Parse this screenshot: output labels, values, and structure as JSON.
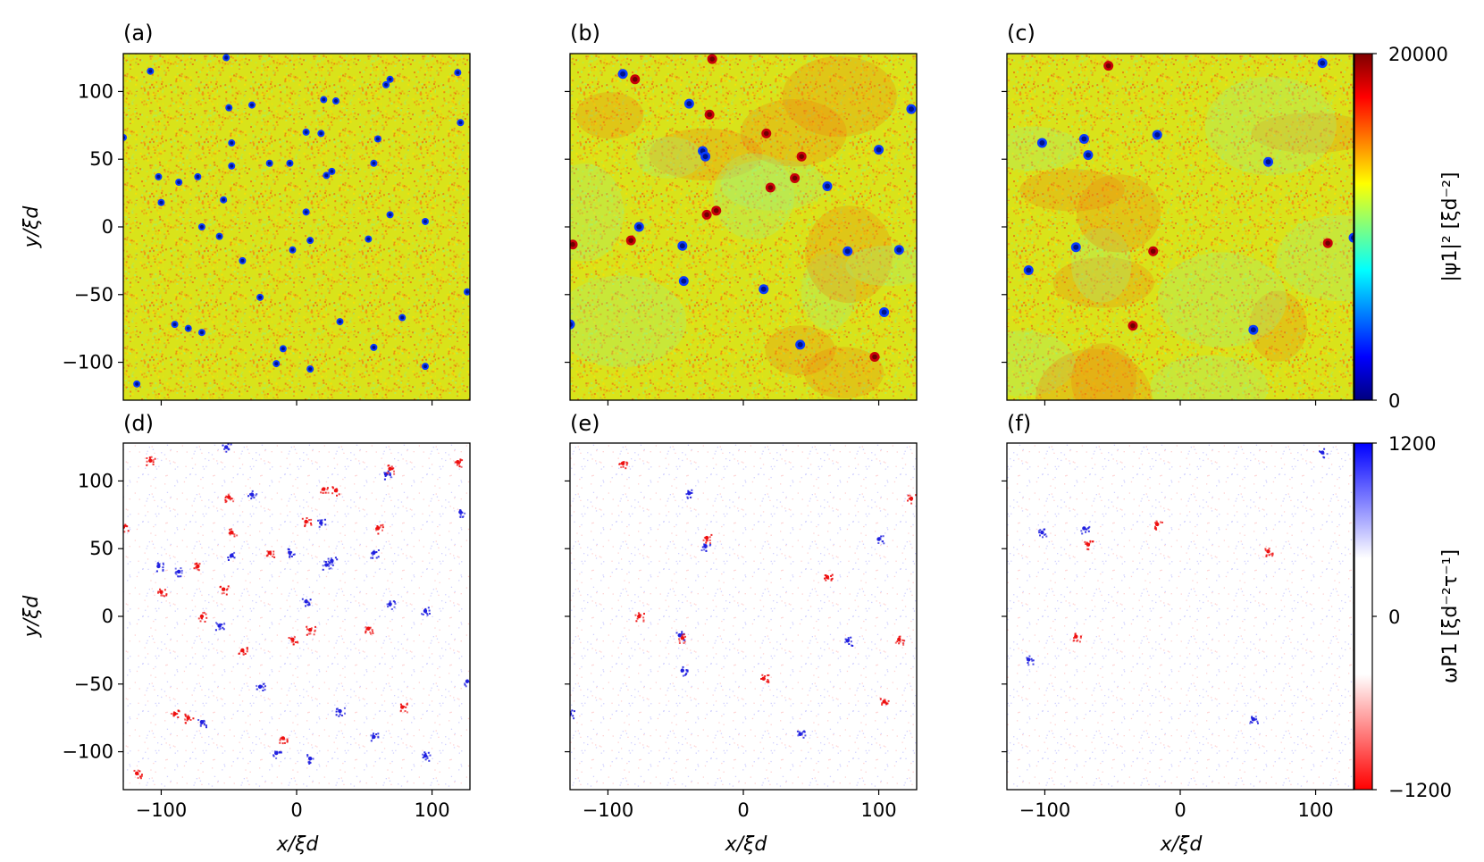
{
  "chart_data": [
    {
      "type": "heatmap",
      "panel": "(a)",
      "field": "density",
      "xlim": [
        -128,
        128
      ],
      "ylim": [
        -128,
        128
      ],
      "xticks": [
        -100,
        0,
        100
      ],
      "yticks": [
        -100,
        -50,
        0,
        50,
        100
      ],
      "ylabel": "y/ξd",
      "vortices": [
        [
          -108,
          115
        ],
        [
          -52,
          125
        ],
        [
          -128,
          66
        ],
        [
          -50,
          88
        ],
        [
          -33,
          90
        ],
        [
          -48,
          62
        ],
        [
          -5,
          47
        ],
        [
          7,
          70
        ],
        [
          18,
          69
        ],
        [
          -20,
          47
        ],
        [
          20,
          94
        ],
        [
          29,
          93
        ],
        [
          60,
          65
        ],
        [
          69,
          109
        ],
        [
          66,
          105
        ],
        [
          119,
          114
        ],
        [
          121,
          77
        ],
        [
          -102,
          37
        ],
        [
          -87,
          33
        ],
        [
          -73,
          37
        ],
        [
          -54,
          20
        ],
        [
          -100,
          18
        ],
        [
          -48,
          45
        ],
        [
          -70,
          0
        ],
        [
          -57,
          -7
        ],
        [
          -3,
          -17
        ],
        [
          10,
          -10
        ],
        [
          22,
          38
        ],
        [
          26,
          41
        ],
        [
          57,
          47
        ],
        [
          69,
          9
        ],
        [
          95,
          4
        ],
        [
          53,
          -9
        ],
        [
          -40,
          -25
        ],
        [
          7,
          11
        ],
        [
          -27,
          -52
        ],
        [
          -90,
          -72
        ],
        [
          -80,
          -75
        ],
        [
          -70,
          -78
        ],
        [
          -10,
          -90
        ],
        [
          -15,
          -101
        ],
        [
          10,
          -105
        ],
        [
          57,
          -89
        ],
        [
          78,
          -67
        ],
        [
          32,
          -70
        ],
        [
          95,
          -103
        ],
        [
          -118,
          -116
        ],
        [
          126,
          -48
        ]
      ]
    },
    {
      "type": "heatmap",
      "panel": "(b)",
      "field": "density",
      "xlim": [
        -128,
        128
      ],
      "ylim": [
        -128,
        128
      ],
      "xticks": [
        -100,
        0,
        100
      ],
      "yticks": [
        -100,
        -50,
        0,
        50,
        100
      ],
      "vortices": [
        [
          -89,
          113
        ],
        [
          -40,
          91
        ],
        [
          -30,
          56
        ],
        [
          -28,
          52
        ],
        [
          -77,
          0
        ],
        [
          -45,
          -14
        ],
        [
          -44,
          -40
        ],
        [
          15,
          -46
        ],
        [
          42,
          -87
        ],
        [
          -128,
          -72
        ],
        [
          100,
          57
        ],
        [
          124,
          87
        ],
        [
          77,
          -18
        ],
        [
          115,
          -17
        ],
        [
          104,
          -63
        ],
        [
          62,
          30
        ]
      ],
      "antivortices": [
        [
          -80,
          109
        ],
        [
          -23,
          124
        ],
        [
          -25,
          83
        ],
        [
          17,
          69
        ],
        [
          43,
          52
        ],
        [
          38,
          36
        ],
        [
          20,
          29
        ],
        [
          -27,
          9
        ],
        [
          -20,
          12
        ],
        [
          -83,
          -10
        ],
        [
          -126,
          -13
        ],
        [
          97,
          -96
        ]
      ]
    },
    {
      "type": "heatmap",
      "panel": "(c)",
      "field": "density",
      "xlim": [
        -128,
        128
      ],
      "ylim": [
        -128,
        128
      ],
      "xticks": [
        -100,
        0,
        100
      ],
      "yticks": [
        -100,
        -50,
        0,
        50,
        100
      ],
      "vortices": [
        [
          -71,
          65
        ],
        [
          -68,
          53
        ],
        [
          -102,
          62
        ],
        [
          -17,
          68
        ],
        [
          65,
          48
        ],
        [
          105,
          121
        ],
        [
          -77,
          -15
        ],
        [
          -112,
          -32
        ],
        [
          54,
          -76
        ],
        [
          128,
          -8
        ]
      ],
      "antivortices": [
        [
          -53,
          119
        ],
        [
          -20,
          -18
        ],
        [
          -35,
          -73
        ],
        [
          109,
          -12
        ]
      ]
    },
    {
      "type": "heatmap",
      "panel": "(d)",
      "field": "vorticity",
      "xlim": [
        -128,
        128
      ],
      "ylim": [
        -128,
        128
      ],
      "xticks": [
        -100,
        0,
        100
      ],
      "yticks": [
        -100,
        -50,
        0,
        50,
        100
      ],
      "xlabel": "x/ξd",
      "ylabel": "y/ξd",
      "positive": [
        [
          -52,
          125
        ],
        [
          -33,
          90
        ],
        [
          -5,
          47
        ],
        [
          18,
          69
        ],
        [
          66,
          105
        ],
        [
          121,
          77
        ],
        [
          -102,
          37
        ],
        [
          -87,
          33
        ],
        [
          -48,
          45
        ],
        [
          -57,
          -7
        ],
        [
          22,
          38
        ],
        [
          26,
          41
        ],
        [
          57,
          47
        ],
        [
          69,
          9
        ],
        [
          95,
          4
        ],
        [
          7,
          11
        ],
        [
          -27,
          -52
        ],
        [
          -70,
          -78
        ],
        [
          -15,
          -101
        ],
        [
          10,
          -105
        ],
        [
          57,
          -89
        ],
        [
          32,
          -70
        ],
        [
          95,
          -103
        ],
        [
          126,
          -48
        ]
      ],
      "negative": [
        [
          -108,
          115
        ],
        [
          -128,
          66
        ],
        [
          -50,
          88
        ],
        [
          -48,
          62
        ],
        [
          7,
          70
        ],
        [
          -20,
          47
        ],
        [
          20,
          94
        ],
        [
          29,
          93
        ],
        [
          60,
          65
        ],
        [
          69,
          109
        ],
        [
          119,
          114
        ],
        [
          -73,
          37
        ],
        [
          -54,
          20
        ],
        [
          -100,
          18
        ],
        [
          -70,
          0
        ],
        [
          -3,
          -17
        ],
        [
          10,
          -10
        ],
        [
          53,
          -9
        ],
        [
          -40,
          -25
        ],
        [
          -90,
          -72
        ],
        [
          -80,
          -75
        ],
        [
          -10,
          -90
        ],
        [
          78,
          -67
        ],
        [
          -118,
          -116
        ]
      ]
    },
    {
      "type": "heatmap",
      "panel": "(e)",
      "field": "vorticity",
      "xlim": [
        -128,
        128
      ],
      "ylim": [
        -128,
        128
      ],
      "xticks": [
        -100,
        0,
        100
      ],
      "yticks": [
        -100,
        -50,
        0,
        50,
        100
      ],
      "xlabel": "x/ξd",
      "positive": [
        [
          -40,
          91
        ],
        [
          -28,
          52
        ],
        [
          -45,
          -40
        ],
        [
          42,
          -87
        ],
        [
          -128,
          -72
        ],
        [
          100,
          57
        ],
        [
          77,
          -18
        ],
        [
          -47,
          -14
        ]
      ],
      "negative": [
        [
          -89,
          113
        ],
        [
          -27,
          58
        ],
        [
          -77,
          0
        ],
        [
          15,
          -46
        ],
        [
          62,
          29
        ],
        [
          115,
          -17
        ],
        [
          104,
          -63
        ],
        [
          124,
          87
        ],
        [
          -45,
          -16
        ]
      ]
    },
    {
      "type": "heatmap",
      "panel": "(f)",
      "field": "vorticity",
      "xlim": [
        -128,
        128
      ],
      "ylim": [
        -128,
        128
      ],
      "xticks": [
        -100,
        0,
        100
      ],
      "yticks": [
        -100,
        -50,
        0,
        50,
        100
      ],
      "xlabel": "x/ξd",
      "positive": [
        [
          -71,
          65
        ],
        [
          -102,
          62
        ],
        [
          105,
          121
        ],
        [
          -112,
          -32
        ],
        [
          54,
          -76
        ]
      ],
      "negative": [
        [
          -68,
          53
        ],
        [
          -17,
          68
        ],
        [
          65,
          48
        ],
        [
          -77,
          -15
        ]
      ]
    }
  ],
  "colorbars": [
    {
      "label": "|ψ1|² [ξd⁻²]",
      "min_label": "0",
      "max_label": "20000",
      "colormap": [
        "#00007f",
        "#0000ff",
        "#007fff",
        "#00ffff",
        "#7fff7f",
        "#ffff00",
        "#ff7f00",
        "#ff0000",
        "#7f0000"
      ]
    },
    {
      "label": "ωP1 [ξd⁻²τ⁻¹]",
      "min_label": "−1200",
      "mid_label": "0",
      "max_label": "1200",
      "colormap": [
        "#ff0000",
        "#ffffff",
        "#ffffff",
        "#0000ff"
      ]
    }
  ]
}
